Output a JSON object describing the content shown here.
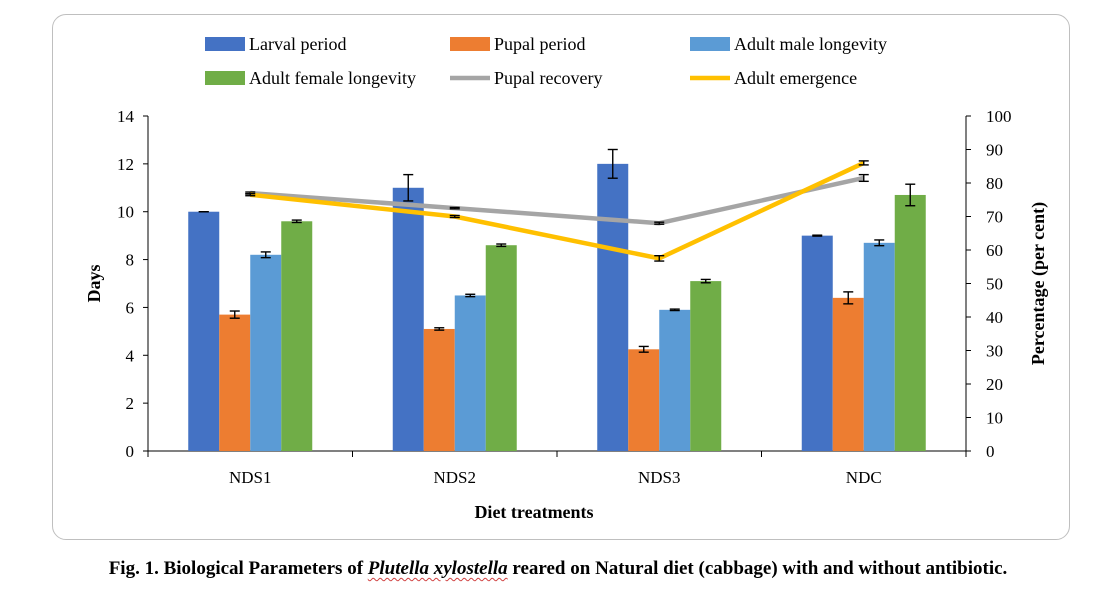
{
  "chart_data": {
    "type": "bar",
    "xlabel": "Diet treatments",
    "ylabel": "Days",
    "y2label": "Percentage (per cent)",
    "categories": [
      "NDS1",
      "NDS2",
      "NDS3",
      "NDC"
    ],
    "ylim": [
      0,
      14
    ],
    "yticks": [
      "0",
      "2",
      "4",
      "6",
      "8",
      "10",
      "12",
      "14"
    ],
    "y2lim": [
      0,
      100
    ],
    "y2ticks": [
      "0",
      "10",
      "20",
      "30",
      "40",
      "50",
      "60",
      "70",
      "80",
      "90",
      "100"
    ],
    "grid": false,
    "legend_position": "top",
    "bar_series": [
      {
        "name": "Larval period",
        "color": "#4472c4",
        "values": [
          10.0,
          11.0,
          12.0,
          9.0
        ],
        "errors": [
          0.0,
          0.55,
          0.6,
          0.02
        ]
      },
      {
        "name": "Pupal period",
        "color": "#ed7d31",
        "values": [
          5.7,
          5.1,
          4.25,
          6.4
        ],
        "errors": [
          0.15,
          0.05,
          0.12,
          0.25
        ]
      },
      {
        "name": "Adult male longevity",
        "color": "#5b9bd5",
        "values": [
          8.2,
          6.5,
          5.9,
          8.7
        ],
        "errors": [
          0.12,
          0.05,
          0.03,
          0.12
        ]
      },
      {
        "name": "Adult female longevity",
        "color": "#70ad47",
        "values": [
          9.6,
          8.6,
          7.1,
          10.7
        ],
        "errors": [
          0.05,
          0.05,
          0.07,
          0.45
        ]
      }
    ],
    "line_series": [
      {
        "name": "Pupal recovery",
        "color": "#a5a5a5",
        "axis": "right",
        "values": [
          77,
          72.5,
          68,
          81.5
        ],
        "errors": [
          0.3,
          0.2,
          0.3,
          1.0
        ]
      },
      {
        "name": "Adult emergence",
        "color": "#ffc000",
        "axis": "right",
        "values": [
          76.5,
          70,
          57.5,
          86
        ],
        "errors": [
          0.3,
          0.3,
          0.8,
          0.6
        ]
      }
    ]
  },
  "caption": {
    "prefix": "Fig. 1. Biological Parameters of ",
    "species": "Plutella xylostella",
    "suffix": " reared on Natural diet (cabbage) with and without antibiotic."
  }
}
